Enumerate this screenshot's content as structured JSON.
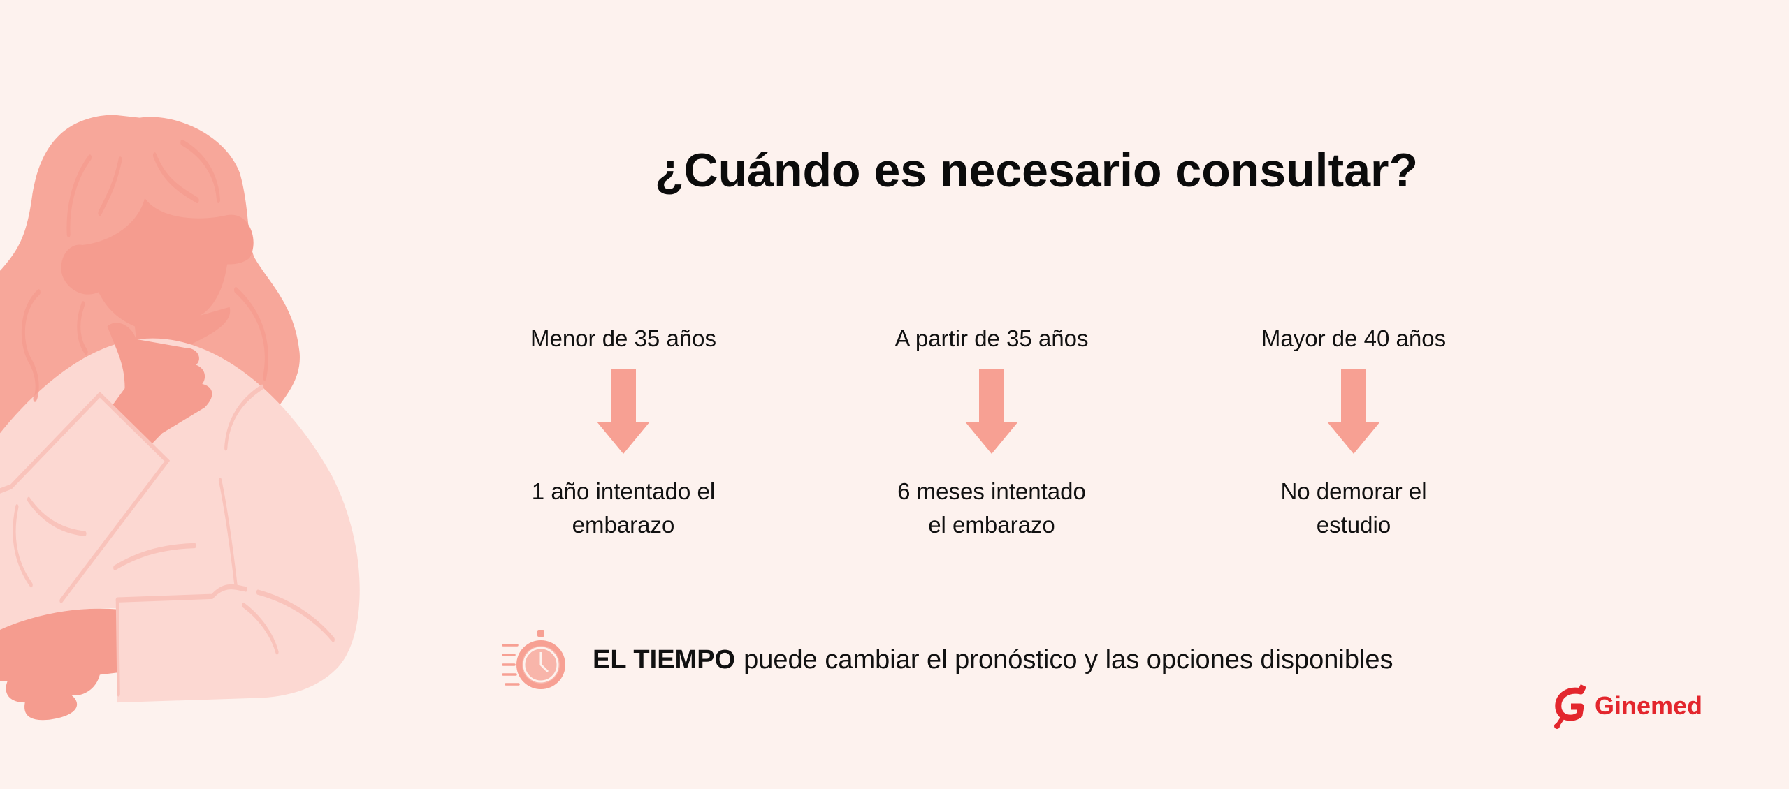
{
  "title": "¿Cuándo es necesario consultar?",
  "columns": [
    {
      "label": "Menor de 35 años",
      "desc_line1": "1 año intentado el",
      "desc_line2": "embarazo"
    },
    {
      "label": "A partir de 35 años",
      "desc_line1": "6 meses intentado",
      "desc_line2": "el embarazo"
    },
    {
      "label": "Mayor de 40 años",
      "desc_line1": "No demorar el",
      "desc_line2": "estudio"
    }
  ],
  "note": {
    "bold": "EL TIEMPO",
    "text": "puede cambiar el pronóstico y las opciones disponibles",
    "icon": "stopwatch-icon"
  },
  "logo": {
    "text": "Ginemed"
  },
  "colors": {
    "background": "#fdf2ee",
    "accent": "#f7a093",
    "brand": "#e3262d"
  }
}
